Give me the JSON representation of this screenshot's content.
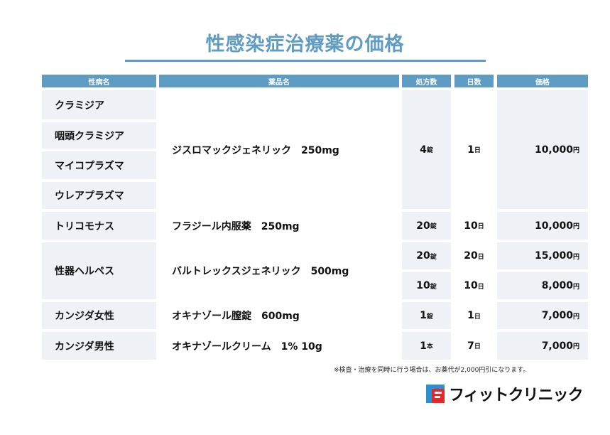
{
  "title": "性感染症治療薬の価格",
  "headers": [
    "性病名",
    "薬品名",
    "処方数",
    "日数",
    "価格"
  ],
  "rows": {
    "group1": {
      "diseases": [
        "クラミジア",
        "咽頭クラミジア",
        "マイコプラズマ",
        "ウレアプラズマ"
      ],
      "drug": "ジスロマックジェネリック　250mg",
      "count": "4",
      "count_unit": "錠",
      "days": "1",
      "days_unit": "日",
      "price": "10,000",
      "price_unit": "円"
    },
    "trich": {
      "disease": "トリコモナス",
      "drug": "フラジール内服薬　250mg",
      "count": "20",
      "count_unit": "錠",
      "days": "10",
      "days_unit": "日",
      "price": "10,000",
      "price_unit": "円"
    },
    "herpes": {
      "disease": "性器ヘルペス",
      "drug": "バルトレックスジェネリック　500mg",
      "a": {
        "count": "20",
        "count_unit": "錠",
        "days": "20",
        "days_unit": "日",
        "price": "15,000",
        "price_unit": "円"
      },
      "b": {
        "count": "10",
        "count_unit": "錠",
        "days": "10",
        "days_unit": "日",
        "price": "8,000",
        "price_unit": "円"
      }
    },
    "candf": {
      "disease": "カンジダ女性",
      "drug": "オキナゾール膣錠　600mg",
      "count": "1",
      "count_unit": "錠",
      "days": "1",
      "days_unit": "日",
      "price": "7,000",
      "price_unit": "円"
    },
    "candm": {
      "disease": "カンジダ男性",
      "drug": "オキナゾールクリーム　1% 10g",
      "count": "1",
      "count_unit": "本",
      "days": "7",
      "days_unit": "日",
      "price": "7,000",
      "price_unit": "円"
    }
  },
  "note": "※検査・治療を同時に行う場合は、お薬代が2,000円引になります。",
  "logo": {
    "text": "フィットクリニック",
    "colors": {
      "blue": "#2a8fd6",
      "red": "#e02a2a"
    }
  },
  "accent": "#5f9cc3"
}
